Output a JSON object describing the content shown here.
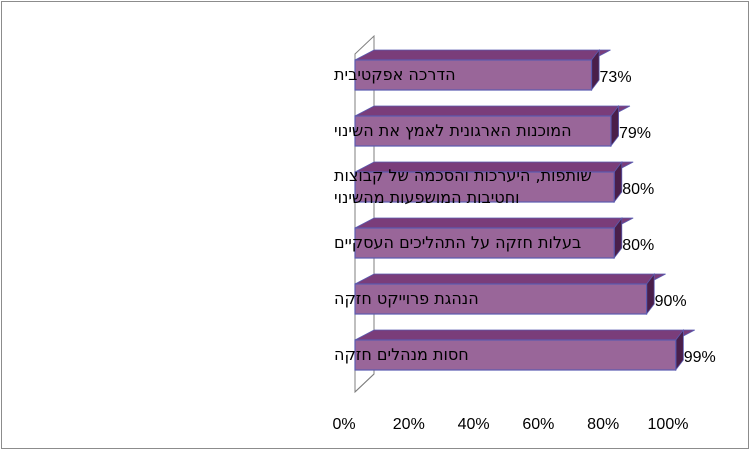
{
  "chart_data": {
    "type": "bar",
    "orientation": "horizontal",
    "style": "3d",
    "categories": [
      "הדרכה אפקטיבית",
      "המוכנות הארגונית לאמץ את השינוי",
      [
        "שותפות, היערכות והסכמה של קבוצות",
        "וחטיבות המושפעות מהשינוי"
      ],
      "בעלות חזקה על התהליכים העסקיים",
      "הנהגת פרוייקט חזקה",
      "חסות מנהלים חזקה"
    ],
    "values": [
      73,
      79,
      80,
      80,
      90,
      99
    ],
    "value_labels": [
      "73%",
      "79%",
      "80%",
      "80%",
      "90%",
      "99%"
    ],
    "xlim": [
      0,
      100
    ],
    "xticks": [
      "0%",
      "20%",
      "40%",
      "60%",
      "80%",
      "100%"
    ],
    "grid": false,
    "legend": "none",
    "colors": {
      "bar_front": "#996699",
      "bar_top": "#7a3d7a",
      "bar_side": "#4a1f4a",
      "bar_edge": "#5b5bb0",
      "wall": "#7f7f7f"
    }
  }
}
